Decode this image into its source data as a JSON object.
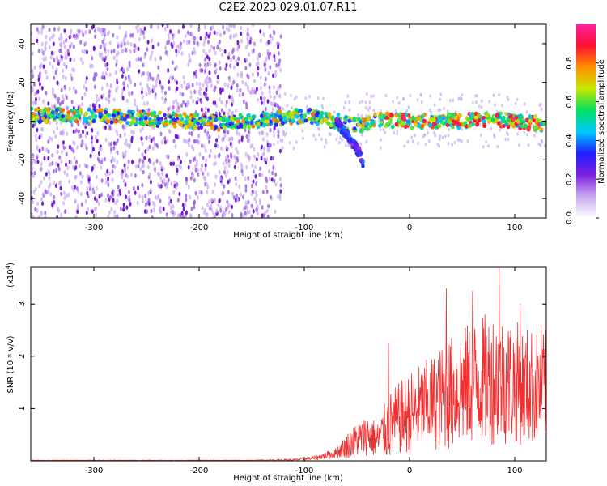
{
  "title": "C2E2.2023.029.01.07.R11",
  "chart_data": [
    {
      "type": "heatmap",
      "xlabel": "Height of straight line (km)",
      "ylabel": "Frequency (Hz)",
      "xlim": [
        -360,
        130
      ],
      "ylim": [
        -50,
        50
      ],
      "xticks": [
        -300,
        -200,
        -100,
        0,
        100
      ],
      "yticks": [
        -40,
        -20,
        0,
        20,
        40
      ],
      "colorbar": {
        "label": "Normalized spectral amplitude",
        "range": [
          0,
          1
        ],
        "ticks": [
          "0.0",
          "0.2",
          "0.4",
          "0.6",
          "0.8"
        ],
        "colormap": [
          "#ffffff",
          "#c8a8f0",
          "#7d20e0",
          "#2020ff",
          "#00c8ff",
          "#00e060",
          "#c8e800",
          "#ff9000",
          "#ff1030",
          "#ff20a0"
        ]
      },
      "ridge": [
        {
          "x": -360,
          "freq": 3
        },
        {
          "x": -300,
          "freq": 3
        },
        {
          "x": -240,
          "freq": 1
        },
        {
          "x": -180,
          "freq": -1
        },
        {
          "x": -130,
          "freq": 1
        },
        {
          "x": -100,
          "freq": 3
        },
        {
          "x": -70,
          "freq": 0
        },
        {
          "x": -45,
          "freq": -2
        },
        {
          "x": -30,
          "freq": 1
        },
        {
          "x": 0,
          "freq": 0
        },
        {
          "x": 50,
          "freq": 0
        },
        {
          "x": 80,
          "freq": 1
        },
        {
          "x": 130,
          "freq": -2
        }
      ],
      "branch": [
        {
          "x": -70,
          "freq": 0
        },
        {
          "x": -58,
          "freq": -8
        },
        {
          "x": -48,
          "freq": -16
        },
        {
          "x": -44,
          "freq": -22
        }
      ],
      "noise_region": {
        "x_from": -360,
        "x_to": -130
      }
    },
    {
      "type": "line",
      "xlabel": "Height of straight line (km)",
      "ylabel": "SNR (10 * v/v)",
      "y_multiplier": "(x10",
      "y_multiplier_exp": "4",
      "y_multiplier_close": ")",
      "xlim": [
        -360,
        130
      ],
      "ylim": [
        0,
        3.7
      ],
      "xticks": [
        -300,
        -200,
        -100,
        0,
        100
      ],
      "yticks": [
        1,
        2,
        3
      ],
      "color": "#f03030",
      "envelope": [
        {
          "x": -360,
          "mean": 0.01,
          "amp": 0.005
        },
        {
          "x": -150,
          "mean": 0.01,
          "amp": 0.005
        },
        {
          "x": -110,
          "mean": 0.02,
          "amp": 0.02
        },
        {
          "x": -90,
          "mean": 0.05,
          "amp": 0.04
        },
        {
          "x": -70,
          "mean": 0.15,
          "amp": 0.1
        },
        {
          "x": -55,
          "mean": 0.35,
          "amp": 0.3
        },
        {
          "x": -40,
          "mean": 0.5,
          "amp": 0.4
        },
        {
          "x": -30,
          "mean": 0.4,
          "amp": 0.35
        },
        {
          "x": -20,
          "mean": 0.65,
          "amp": 0.65
        },
        {
          "x": -10,
          "mean": 0.8,
          "amp": 0.7
        },
        {
          "x": 0,
          "mean": 0.9,
          "amp": 0.8
        },
        {
          "x": 20,
          "mean": 1.1,
          "amp": 0.9
        },
        {
          "x": 40,
          "mean": 1.3,
          "amp": 1.1
        },
        {
          "x": 60,
          "mean": 1.5,
          "amp": 1.2
        },
        {
          "x": 80,
          "mean": 1.6,
          "amp": 1.3
        },
        {
          "x": 100,
          "mean": 1.5,
          "amp": 1.2
        },
        {
          "x": 120,
          "mean": 1.4,
          "amp": 1.1
        },
        {
          "x": 130,
          "mean": 1.4,
          "amp": 1.1
        }
      ],
      "peaks": [
        {
          "x": -20,
          "y": 2.25
        },
        {
          "x": 35,
          "y": 3.3
        },
        {
          "x": 60,
          "y": 3.25
        },
        {
          "x": 85,
          "y": 3.7
        },
        {
          "x": 105,
          "y": 3.0
        },
        {
          "x": 125,
          "y": 2.6
        }
      ]
    }
  ]
}
